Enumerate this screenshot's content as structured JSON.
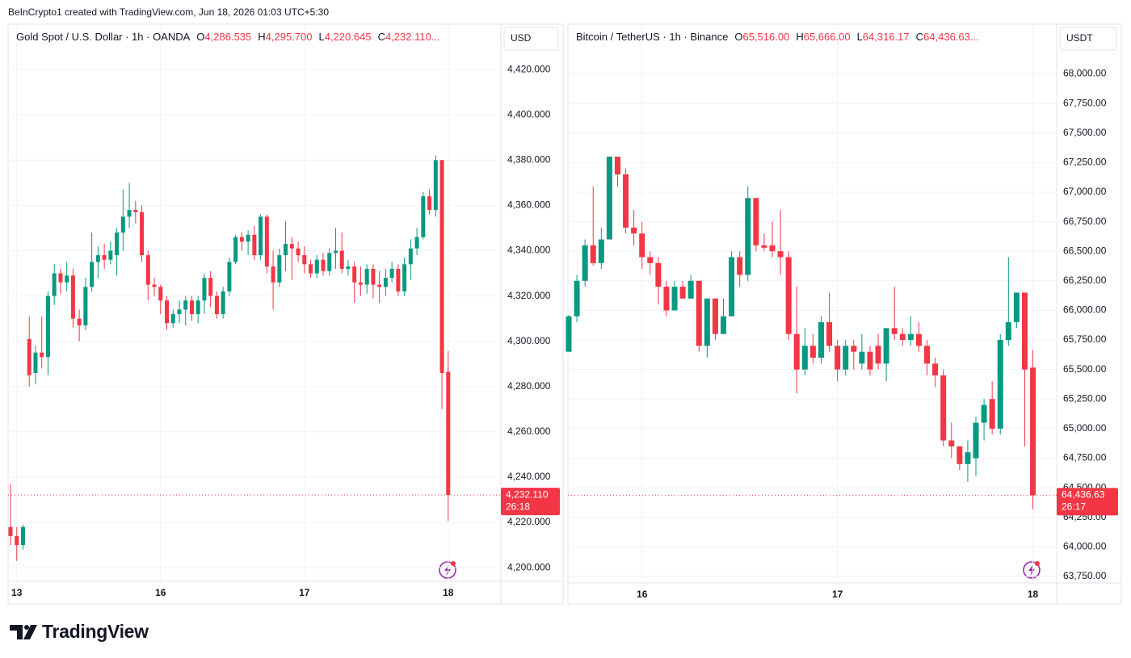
{
  "top_note": "BeInCrypto1 created with TradingView.com, Jun 18, 2026 01:03 UTC+5:30",
  "footer_logo": "TradingView",
  "chart_data": [
    {
      "type": "candlestick",
      "symbol": "Gold Spot / U.S. Dollar · 1h · OANDA",
      "ohlc": [
        {
          "key": "O",
          "label": "4,286.535"
        },
        {
          "key": "H",
          "label": "4,295.700"
        },
        {
          "key": "L",
          "label": "4,220.645"
        },
        {
          "key": "C",
          "label": "4,232.110..."
        }
      ],
      "currency": "USD",
      "last_label": "4,232.110",
      "countdown": "26:18",
      "up_color": "#089981",
      "down_color": "#f23645",
      "grid": true,
      "ylim": [
        4194,
        4440
      ],
      "yticks": [
        {
          "value": 4200,
          "label": "4,200.000"
        },
        {
          "value": 4220,
          "label": "4,220.000"
        },
        {
          "value": 4240,
          "label": "4,240.000"
        },
        {
          "value": 4260,
          "label": "4,260.000"
        },
        {
          "value": 4280,
          "label": "4,280.000"
        },
        {
          "value": 4300,
          "label": "4,300.000"
        },
        {
          "value": 4320,
          "label": "4,320.000"
        },
        {
          "value": 4340,
          "label": "4,340.000"
        },
        {
          "value": 4360,
          "label": "4,360.000"
        },
        {
          "value": 4380,
          "label": "4,380.000"
        },
        {
          "value": 4400,
          "label": "4,400.000"
        },
        {
          "value": 4420,
          "label": "4,420.000"
        }
      ],
      "categories": [
        null,
        "13",
        null,
        null,
        null,
        null,
        null,
        null,
        null,
        null,
        null,
        null,
        null,
        null,
        null,
        null,
        null,
        null,
        null,
        null,
        null,
        null,
        null,
        null,
        "16",
        null,
        null,
        null,
        null,
        null,
        null,
        null,
        null,
        null,
        null,
        null,
        null,
        null,
        null,
        null,
        null,
        null,
        null,
        null,
        null,
        null,
        null,
        "17",
        null,
        null,
        null,
        null,
        null,
        null,
        null,
        null,
        null,
        null,
        null,
        null,
        null,
        null,
        null,
        null,
        null,
        null,
        null,
        null,
        null,
        null,
        "18"
      ],
      "open": [
        4218,
        4214,
        4210,
        4301,
        4286,
        4295,
        4293,
        4320,
        4330,
        4326,
        4329,
        4310,
        4307,
        4324,
        4335,
        4338,
        4336,
        4338,
        4348,
        4355,
        4358,
        4357,
        4338,
        4325,
        4324,
        4318,
        4308,
        4312,
        4314,
        4318,
        4312,
        4318,
        4328,
        4320,
        4312,
        4322,
        4335,
        4346,
        4344,
        4347,
        4338,
        4355,
        4333,
        4326,
        4338,
        4343,
        4341,
        4338,
        4334,
        4330,
        4336,
        4331,
        4339,
        4340,
        4332,
        4333,
        4326,
        4325,
        4332,
        4325,
        4324,
        4328,
        4332,
        4322,
        4334,
        4341,
        4346,
        4364,
        4358,
        4380,
        4286.535
      ],
      "high": [
        4237,
        4218,
        4219,
        4311,
        4298,
        4311,
        4322,
        4334,
        4332,
        4335,
        4332,
        4314,
        4328,
        4348,
        4342,
        4343,
        4344,
        4350,
        4367,
        4370,
        4362,
        4360,
        4340,
        4328,
        4325,
        4320,
        4314,
        4318,
        4320,
        4320,
        4320,
        4330,
        4331,
        4322,
        4324,
        4337,
        4347,
        4348,
        4349,
        4351,
        4356,
        4356,
        4340,
        4341,
        4353,
        4346,
        4344,
        4342,
        4336,
        4338,
        4339,
        4341,
        4350,
        4348,
        4336,
        4335,
        4333,
        4334,
        4334,
        4331,
        4332,
        4335,
        4334,
        4337,
        4345,
        4350,
        4366,
        4367,
        4382,
        4380,
        4295.7
      ],
      "low": [
        4210,
        4203,
        4208,
        4280,
        4281,
        4288,
        4285,
        4316,
        4321,
        4322,
        4306,
        4300,
        4305,
        4322,
        4328,
        4332,
        4334,
        4329,
        4340,
        4350,
        4352,
        4335,
        4318,
        4320,
        4312,
        4305,
        4306,
        4308,
        4307,
        4309,
        4308,
        4312,
        4315,
        4310,
        4310,
        4320,
        4334,
        4340,
        4338,
        4336,
        4336,
        4330,
        4314,
        4324,
        4331,
        4327,
        4335,
        4330,
        4328,
        4328,
        4329,
        4329,
        4332,
        4330,
        4329,
        4317,
        4320,
        4321,
        4319,
        4317,
        4320,
        4326,
        4320,
        4320,
        4327,
        4338,
        4345,
        4356,
        4355,
        4270,
        4220.645
      ],
      "close": [
        4214,
        4210,
        4218,
        4285,
        4295,
        4293,
        4320,
        4330,
        4326,
        4329,
        4310,
        4307,
        4324,
        4335,
        4338,
        4336,
        4340,
        4348,
        4355,
        4358,
        4357,
        4338,
        4325,
        4324,
        4318,
        4308,
        4312,
        4314,
        4318,
        4312,
        4318,
        4328,
        4320,
        4312,
        4322,
        4335,
        4346,
        4344,
        4347,
        4338,
        4355,
        4333,
        4326,
        4338,
        4343,
        4341,
        4338,
        4334,
        4330,
        4336,
        4331,
        4339,
        4340,
        4332,
        4333,
        4326,
        4325,
        4332,
        4325,
        4324,
        4328,
        4332,
        4322,
        4334,
        4341,
        4346,
        4364,
        4358,
        4380,
        4286,
        4232.11
      ]
    },
    {
      "type": "candlestick",
      "symbol": "Bitcoin / TetherUS · 1h · Binance",
      "ohlc": [
        {
          "key": "O",
          "label": "65,516.00"
        },
        {
          "key": "H",
          "label": "65,666.00"
        },
        {
          "key": "L",
          "label": "64,316.17"
        },
        {
          "key": "C",
          "label": "64,436.63..."
        }
      ],
      "currency": "USDT",
      "last_label": "64,436.63",
      "countdown": "26:17",
      "up_color": "#089981",
      "down_color": "#f23645",
      "grid": true,
      "ylim": [
        63695,
        68420
      ],
      "yticks": [
        {
          "value": 63750,
          "label": "63,750.00"
        },
        {
          "value": 64000,
          "label": "64,000.00"
        },
        {
          "value": 64250,
          "label": "64,250.00"
        },
        {
          "value": 64500,
          "label": "64,500.00"
        },
        {
          "value": 64750,
          "label": "64,750.00"
        },
        {
          "value": 65000,
          "label": "65,000.00"
        },
        {
          "value": 65250,
          "label": "65,250.00"
        },
        {
          "value": 65500,
          "label": "65,500.00"
        },
        {
          "value": 65750,
          "label": "65,750.00"
        },
        {
          "value": 66000,
          "label": "66,000.00"
        },
        {
          "value": 66250,
          "label": "66,250.00"
        },
        {
          "value": 66500,
          "label": "66,500.00"
        },
        {
          "value": 66750,
          "label": "66,750.00"
        },
        {
          "value": 67000,
          "label": "67,000.00"
        },
        {
          "value": 67250,
          "label": "67,250.00"
        },
        {
          "value": 67500,
          "label": "67,500.00"
        },
        {
          "value": 67750,
          "label": "67,750.00"
        },
        {
          "value": 68000,
          "label": "68,000.00"
        }
      ],
      "categories": [
        null,
        null,
        null,
        null,
        null,
        null,
        null,
        null,
        null,
        "16",
        null,
        null,
        null,
        null,
        null,
        null,
        null,
        null,
        null,
        null,
        null,
        null,
        null,
        null,
        null,
        null,
        null,
        null,
        null,
        null,
        null,
        null,
        null,
        "17",
        null,
        null,
        null,
        null,
        null,
        null,
        null,
        null,
        null,
        null,
        null,
        null,
        null,
        null,
        null,
        null,
        null,
        null,
        null,
        null,
        null,
        null,
        null,
        "18"
      ],
      "open": [
        65650,
        65950,
        66250,
        66550,
        66400,
        66600,
        67300,
        67150,
        66700,
        66650,
        66450,
        66400,
        66200,
        66000,
        66200,
        66100,
        66250,
        65700,
        66100,
        65800,
        65950,
        66450,
        66300,
        66950,
        66550,
        66550,
        66500,
        66450,
        65800,
        65500,
        65700,
        65600,
        65900,
        65700,
        65500,
        65700,
        65550,
        65650,
        65700,
        65550,
        65850,
        65800,
        65750,
        65800,
        65700,
        65550,
        65450,
        64900,
        64850,
        64700,
        64750,
        65050,
        65250,
        65000,
        65750,
        65900,
        66150,
        65516
      ],
      "high": [
        65960,
        66300,
        66600,
        67050,
        66700,
        67300,
        67300,
        67200,
        66850,
        66750,
        66500,
        66450,
        66250,
        66250,
        66250,
        66300,
        66250,
        66100,
        66100,
        66100,
        66500,
        66500,
        67050,
        66950,
        66650,
        66750,
        66850,
        66500,
        66200,
        65850,
        65800,
        65950,
        66150,
        65750,
        65750,
        65750,
        65800,
        65700,
        65800,
        65850,
        66200,
        65850,
        65950,
        65900,
        65750,
        65600,
        65500,
        65050,
        64850,
        64900,
        65100,
        65250,
        65400,
        65800,
        66450,
        66150,
        66150,
        65666
      ],
      "low": [
        65650,
        65900,
        66200,
        66380,
        66350,
        66600,
        67050,
        66650,
        66550,
        66350,
        66300,
        66050,
        65950,
        66000,
        66100,
        66100,
        65650,
        65600,
        65750,
        65800,
        65950,
        66200,
        66250,
        66500,
        66500,
        66450,
        66300,
        65750,
        65300,
        65450,
        65550,
        65550,
        65650,
        65400,
        65450,
        65500,
        65500,
        65450,
        65500,
        65400,
        65750,
        65700,
        65700,
        65650,
        65450,
        65350,
        64850,
        64750,
        64650,
        64550,
        64600,
        64900,
        64950,
        64950,
        65700,
        65850,
        64850,
        64316.17
      ],
      "close": [
        65950,
        66250,
        66550,
        66400,
        66600,
        67300,
        67150,
        66700,
        66650,
        66450,
        66400,
        66200,
        66000,
        66200,
        66100,
        66250,
        65700,
        66100,
        65800,
        65950,
        66450,
        66300,
        66950,
        66550,
        66530,
        66500,
        66450,
        65800,
        65500,
        65700,
        65600,
        65900,
        65700,
        65500,
        65700,
        65650,
        65650,
        65500,
        65550,
        65850,
        65800,
        65750,
        65800,
        65700,
        65550,
        65450,
        64900,
        64850,
        64700,
        64800,
        65050,
        65200,
        65000,
        65750,
        65900,
        66150,
        65500,
        64436.63
      ]
    }
  ]
}
